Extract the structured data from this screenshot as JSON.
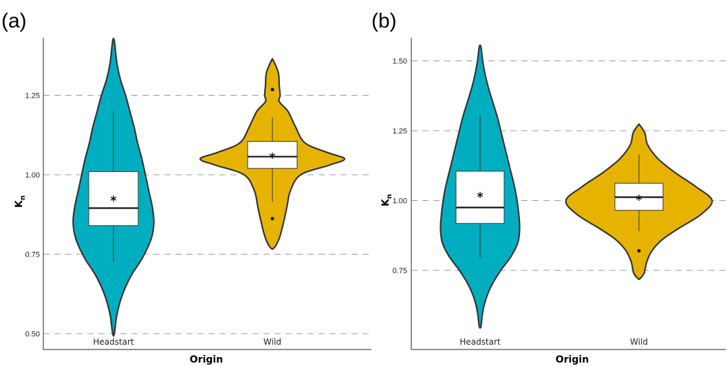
{
  "colors": {
    "Headstart": "#00aec0",
    "Wild": "#e6b400",
    "outline": "#333333",
    "grid": "#9a9a9a"
  },
  "chart_data": [
    {
      "type": "violin",
      "panel_label": "(a)",
      "xlabel": "Origin",
      "ylabel": "K",
      "ylabel_subscript": "n",
      "ylim": [
        0.5,
        1.4
      ],
      "ticks": [
        {
          "value": 0.5,
          "label": "0.50"
        },
        {
          "value": 0.75,
          "label": "0.75"
        },
        {
          "value": 1.0,
          "label": "1.00"
        },
        {
          "value": 1.25,
          "label": "1.25"
        }
      ],
      "grid": true,
      "categories": [
        "Headstart",
        "Wild"
      ],
      "series": [
        {
          "category": "Headstart",
          "density": [
            [
              0.5,
              0.01
            ],
            [
              0.56,
              0.04
            ],
            [
              0.62,
              0.1
            ],
            [
              0.68,
              0.2
            ],
            [
              0.74,
              0.34
            ],
            [
              0.8,
              0.44
            ],
            [
              0.85,
              0.47
            ],
            [
              0.9,
              0.45
            ],
            [
              0.95,
              0.41
            ],
            [
              1.0,
              0.37
            ],
            [
              1.05,
              0.33
            ],
            [
              1.1,
              0.28
            ],
            [
              1.15,
              0.24
            ],
            [
              1.2,
              0.19
            ],
            [
              1.25,
              0.14
            ],
            [
              1.3,
              0.08
            ],
            [
              1.35,
              0.04
            ],
            [
              1.42,
              0.01
            ]
          ],
          "box": {
            "whisker_low": 0.725,
            "q1": 0.84,
            "median": 0.895,
            "q3": 1.01,
            "whisker_high": 1.2
          },
          "mean": 0.925,
          "outliers": []
        },
        {
          "category": "Wild",
          "density": [
            [
              0.77,
              0.02
            ],
            [
              0.8,
              0.08
            ],
            [
              0.85,
              0.13
            ],
            [
              0.9,
              0.17
            ],
            [
              0.95,
              0.21
            ],
            [
              1.0,
              0.33
            ],
            [
              1.03,
              0.66
            ],
            [
              1.05,
              0.84
            ],
            [
              1.07,
              0.64
            ],
            [
              1.1,
              0.38
            ],
            [
              1.15,
              0.27
            ],
            [
              1.2,
              0.18
            ],
            [
              1.23,
              0.08
            ],
            [
              1.25,
              0.09
            ],
            [
              1.28,
              0.08
            ],
            [
              1.32,
              0.07
            ],
            [
              1.36,
              0.01
            ]
          ],
          "box": {
            "whisker_low": 0.915,
            "q1": 1.02,
            "median": 1.057,
            "q3": 1.105,
            "whisker_high": 1.18
          },
          "mean": 1.06,
          "outliers": [
            0.862,
            1.268
          ]
        }
      ]
    },
    {
      "type": "violin",
      "panel_label": "(b)",
      "xlabel": "Origin",
      "ylabel": "K",
      "ylabel_subscript": "n",
      "ylim": [
        0.55,
        1.55
      ],
      "ticks": [
        {
          "value": 0.75,
          "label": "0.75"
        },
        {
          "value": 1.0,
          "label": "1.00"
        },
        {
          "value": 1.25,
          "label": "1.25"
        },
        {
          "value": 1.5,
          "label": "1.50"
        }
      ],
      "grid": true,
      "categories": [
        "Headstart",
        "Wild"
      ],
      "series": [
        {
          "category": "Headstart",
          "density": [
            [
              0.55,
              0.01
            ],
            [
              0.6,
              0.03
            ],
            [
              0.65,
              0.07
            ],
            [
              0.7,
              0.14
            ],
            [
              0.75,
              0.24
            ],
            [
              0.8,
              0.36
            ],
            [
              0.85,
              0.44
            ],
            [
              0.9,
              0.46
            ],
            [
              0.95,
              0.45
            ],
            [
              1.0,
              0.43
            ],
            [
              1.05,
              0.4
            ],
            [
              1.1,
              0.36
            ],
            [
              1.15,
              0.32
            ],
            [
              1.2,
              0.28
            ],
            [
              1.25,
              0.24
            ],
            [
              1.3,
              0.2
            ],
            [
              1.35,
              0.15
            ],
            [
              1.4,
              0.1
            ],
            [
              1.45,
              0.06
            ],
            [
              1.5,
              0.03
            ],
            [
              1.55,
              0.01
            ]
          ],
          "box": {
            "whisker_low": 0.795,
            "q1": 0.918,
            "median": 0.975,
            "q3": 1.105,
            "whisker_high": 1.308
          },
          "mean": 1.02,
          "outliers": []
        },
        {
          "category": "Wild",
          "density": [
            [
              0.72,
              0.01
            ],
            [
              0.74,
              0.06
            ],
            [
              0.78,
              0.09
            ],
            [
              0.82,
              0.15
            ],
            [
              0.86,
              0.27
            ],
            [
              0.9,
              0.46
            ],
            [
              0.95,
              0.72
            ],
            [
              1.0,
              0.85
            ],
            [
              1.05,
              0.66
            ],
            [
              1.1,
              0.42
            ],
            [
              1.15,
              0.22
            ],
            [
              1.2,
              0.1
            ],
            [
              1.24,
              0.07
            ],
            [
              1.27,
              0.01
            ]
          ],
          "box": {
            "whisker_low": 0.89,
            "q1": 0.965,
            "median": 1.012,
            "q3": 1.062,
            "whisker_high": 1.165
          },
          "mean": 1.01,
          "outliers": [
            0.82
          ]
        }
      ]
    }
  ]
}
